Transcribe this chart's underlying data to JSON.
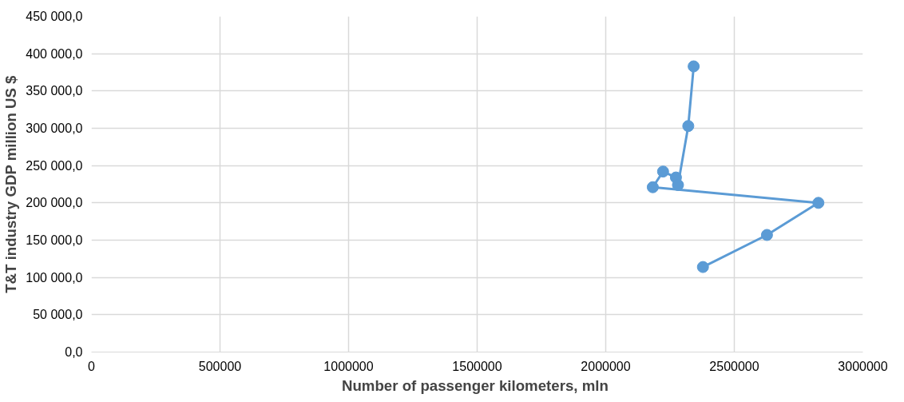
{
  "chart_data": {
    "type": "line",
    "xlabel": "Number of passenger kilometers,  mln",
    "ylabel": "T&T industry GDP million US $",
    "xlim": [
      0,
      3000000
    ],
    "xticks": [
      0,
      500000,
      1000000,
      1500000,
      2000000,
      2500000,
      3000000
    ],
    "ylim": [
      0,
      450000
    ],
    "yticks": [
      {
        "value": 0,
        "label": "0,0"
      },
      {
        "value": 50000,
        "label": "50 000,0"
      },
      {
        "value": 100000,
        "label": "100 000,0"
      },
      {
        "value": 150000,
        "label": "150 000,0"
      },
      {
        "value": 200000,
        "label": "200 000,0"
      },
      {
        "value": 250000,
        "label": "250 000,0"
      },
      {
        "value": 300000,
        "label": "300 000,0"
      },
      {
        "value": 350000,
        "label": "350 000,0"
      },
      {
        "value": 400000,
        "label": "400 000,0"
      },
      {
        "value": 450000,
        "label": "450 000,0"
      }
    ],
    "grid": true,
    "marker": "circle",
    "line_style": "solid",
    "series": [
      {
        "color": "#5b9bd5",
        "x": [
          2378000,
          2627000,
          2827000,
          2183000,
          2223000,
          2273000,
          2281000,
          2321000,
          2342000
        ],
        "values": [
          114000,
          157000,
          200000,
          221000,
          242000,
          234000,
          224000,
          303000,
          383000
        ]
      }
    ]
  }
}
